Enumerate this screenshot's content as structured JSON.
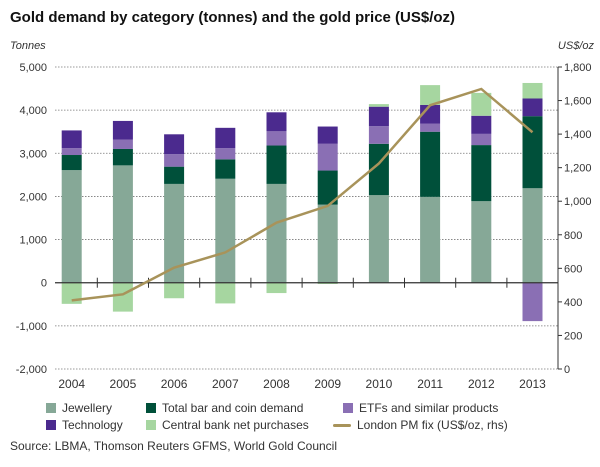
{
  "chart_data": {
    "type": "bar",
    "title": "Gold demand by category (tonnes) and the gold price (US$/oz)",
    "ylabel": "Tonnes",
    "y2label": "US$/oz",
    "ylim": [
      -2000,
      5000
    ],
    "y2lim": [
      0,
      1800
    ],
    "yticks": [
      "5,000",
      "4,000",
      "3,000",
      "2,000",
      "1,000",
      "0",
      "-1,000",
      "-2,000"
    ],
    "yticks_values": [
      5000,
      4000,
      3000,
      2000,
      1000,
      0,
      -1000,
      -2000
    ],
    "y2ticks": [
      "1,800",
      "1,600",
      "1,400",
      "1,200",
      "1,000",
      "800",
      "600",
      "400",
      "200",
      "0"
    ],
    "y2ticks_values": [
      1800,
      1600,
      1400,
      1200,
      1000,
      800,
      600,
      400,
      200,
      0
    ],
    "grid": true,
    "stacked": true,
    "categories": [
      "2004",
      "2005",
      "2006",
      "2007",
      "2008",
      "2009",
      "2010",
      "2011",
      "2012",
      "2013"
    ],
    "series": [
      {
        "name": "Jewellery",
        "color": "#86a897",
        "values": [
          2610,
          2720,
          2290,
          2410,
          2290,
          1810,
          2030,
          1990,
          1890,
          2190
        ]
      },
      {
        "name": "Total bar and coin demand",
        "color": "#00503a",
        "values": [
          350,
          380,
          400,
          450,
          890,
          790,
          1190,
          1510,
          1300,
          1670
        ]
      },
      {
        "name": "ETFs and similar products",
        "color": "#8a6fb4",
        "values": [
          160,
          220,
          290,
          260,
          330,
          620,
          410,
          190,
          260,
          -890
        ]
      },
      {
        "name": "Technology",
        "color": "#4b2a8e",
        "values": [
          410,
          430,
          460,
          470,
          440,
          400,
          450,
          430,
          420,
          410
        ]
      },
      {
        "name": "Central bank net purchases",
        "color": "#a6d6a0",
        "values": [
          -490,
          -670,
          -360,
          -480,
          -240,
          -30,
          60,
          460,
          530,
          360
        ]
      }
    ],
    "line": {
      "name": "London PM fix (US$/oz, rhs)",
      "color": "#a8935a",
      "axis": "right",
      "values": [
        409,
        445,
        604,
        695,
        872,
        972,
        1225,
        1572,
        1669,
        1411
      ]
    },
    "legend_position": "bottom"
  },
  "source": "Source: LBMA, Thomson Reuters GFMS, World Gold Council"
}
